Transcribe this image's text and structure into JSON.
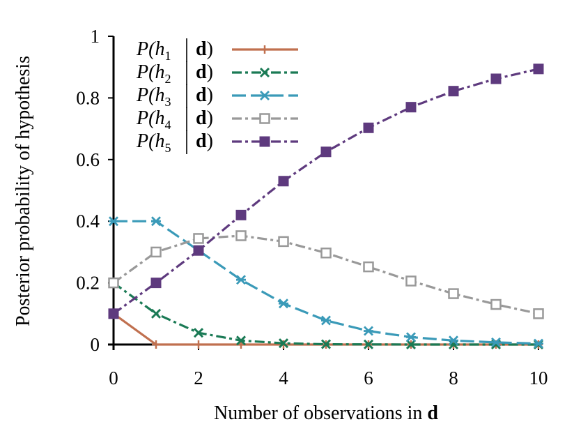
{
  "chart_data": {
    "type": "line",
    "title": "",
    "xlabel": "Number of observations in",
    "xlabel_bold": "d",
    "ylabel": "Posterior probability of hypothesis",
    "xlim": [
      0,
      10
    ],
    "ylim": [
      0,
      1
    ],
    "x_ticks": [
      0,
      2,
      4,
      6,
      8,
      10
    ],
    "y_ticks": [
      0,
      0.2,
      0.4,
      0.6,
      0.8,
      1
    ],
    "y_tick_labels": [
      "0",
      "0.2",
      "0.4",
      "0.6",
      "0.8",
      "1"
    ],
    "x_tick_labels": [
      "0",
      "2",
      "4",
      "6",
      "8",
      "10"
    ],
    "grid": false,
    "legend_position": "top-left",
    "x": [
      0,
      1,
      2,
      3,
      4,
      5,
      6,
      7,
      8,
      9,
      10
    ],
    "series": [
      {
        "legend": {
          "prefix": "P(",
          "var": "h",
          "sub": "1",
          "given": "d",
          "close": ")"
        },
        "color": "#c0704f",
        "marker": "plus",
        "dash": "solid",
        "values": [
          0.1,
          0,
          0,
          0,
          0,
          0,
          0,
          0,
          0,
          0,
          0
        ]
      },
      {
        "legend": {
          "prefix": "P(",
          "var": "h",
          "sub": "2",
          "given": "d",
          "close": ")"
        },
        "color": "#1a7a55",
        "marker": "x",
        "dash": "dashdot",
        "values": [
          0.2,
          0.1,
          0.038,
          0.013,
          0.004,
          0.001,
          0.0004,
          0.0001,
          0,
          0,
          0
        ]
      },
      {
        "legend": {
          "prefix": "P(",
          "var": "h",
          "sub": "3",
          "given": "d",
          "close": ")"
        },
        "color": "#3a9ab8",
        "marker": "star",
        "dash": "longdash",
        "values": [
          0.4,
          0.4,
          0.305,
          0.21,
          0.133,
          0.078,
          0.044,
          0.024,
          0.013,
          0.007,
          0.003
        ]
      },
      {
        "legend": {
          "prefix": "P(",
          "var": "h",
          "sub": "4",
          "given": "d",
          "close": ")"
        },
        "color": "#999999",
        "marker": "open-square",
        "dash": "dashdot",
        "values": [
          0.2,
          0.3,
          0.344,
          0.353,
          0.334,
          0.297,
          0.252,
          0.206,
          0.165,
          0.13,
          0.1
        ]
      },
      {
        "legend": {
          "prefix": "P(",
          "var": "h",
          "sub": "5",
          "given": "d",
          "close": ")"
        },
        "color": "#5e3a7e",
        "marker": "filled-square",
        "dash": "dashdot",
        "values": [
          0.1,
          0.2,
          0.305,
          0.42,
          0.53,
          0.625,
          0.703,
          0.77,
          0.822,
          0.862,
          0.894
        ]
      }
    ]
  }
}
